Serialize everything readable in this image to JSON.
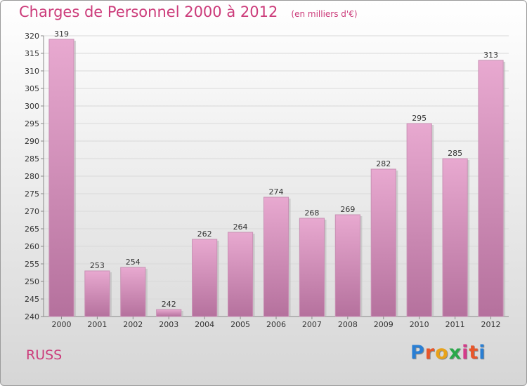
{
  "title": "Charges de Personnel 2000 à 2012",
  "subtitle": "(en milliers d'€)",
  "commune": "RUSS",
  "logo": {
    "letters": [
      "P",
      "r",
      "o",
      "x",
      "i",
      "t",
      "i"
    ],
    "colors": [
      "#2a7fd4",
      "#e8562a",
      "#e8a21a",
      "#2aa84a",
      "#d43a8a",
      "#e8562a",
      "#2a7fd4"
    ]
  },
  "colors": {
    "bar_light": "#e8a9d0",
    "bar_dark": "#b5719d",
    "title": "#cc3b7a"
  },
  "chart_data": {
    "type": "bar",
    "categories": [
      "2000",
      "2001",
      "2002",
      "2003",
      "2004",
      "2005",
      "2006",
      "2007",
      "2008",
      "2009",
      "2010",
      "2011",
      "2012"
    ],
    "values": [
      319,
      253,
      254,
      242,
      262,
      264,
      274,
      268,
      269,
      282,
      295,
      285,
      313
    ],
    "ylim": [
      240,
      320
    ],
    "yticks": [
      240,
      245,
      250,
      255,
      260,
      265,
      270,
      275,
      280,
      285,
      290,
      295,
      300,
      305,
      310,
      315,
      320
    ],
    "grid": true,
    "legend": "none"
  }
}
